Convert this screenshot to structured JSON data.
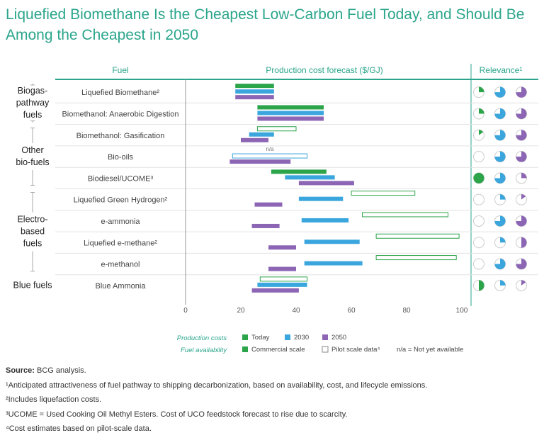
{
  "title": "Liquefied Biomethane Is the Cheapest Low-Carbon Fuel Today, and Should Be Among the Cheapest in 2050",
  "colors": {
    "accent": "#2aa58b",
    "today": "#2ca44a",
    "y2030": "#3aa6dd",
    "y2050": "#8c66b5",
    "rule": "#2aa58b",
    "pie_outline": "#cccccc",
    "axis": "#999999",
    "group_text": "#222222"
  },
  "headers": {
    "fuel": "Fuel",
    "cost": "Production cost forecast ($/GJ)",
    "relevance": "Relevance¹"
  },
  "chart_data": {
    "type": "bar",
    "orientation": "horizontal",
    "subtype": "floating-range",
    "title": "Production cost forecast ($/GJ)",
    "xlim": [
      0,
      100
    ],
    "xticks": [
      "0",
      "20",
      "40",
      "60",
      "80",
      "100"
    ],
    "series": [
      {
        "name": "Today",
        "key": "today"
      },
      {
        "name": "2030",
        "key": "y2030"
      },
      {
        "name": "2050",
        "key": "y2050"
      }
    ],
    "groups": [
      {
        "label": "Biogas-pathway fuels",
        "lines": [
          "Biogas-",
          "pathway",
          "fuels"
        ]
      },
      {
        "label": "Other bio-fuels",
        "lines": [
          "Other",
          "bio-fuels"
        ]
      },
      {
        "label": "Electro-based fuels",
        "lines": [
          "Electro-",
          "based",
          "fuels"
        ]
      },
      {
        "label": "Blue fuels",
        "lines": [
          "Blue fuels"
        ]
      }
    ],
    "rows": [
      {
        "name": "Liquefied Biomethane²",
        "group": 0,
        "today": {
          "low": 18,
          "high": 32,
          "scale": "commercial"
        },
        "y2030": {
          "low": 18,
          "high": 32
        },
        "y2050": {
          "low": 18,
          "high": 32
        },
        "relevance": [
          0.25,
          0.75,
          0.75
        ]
      },
      {
        "name": "Biomethanol: Anaerobic Digestion",
        "group": 0,
        "today": {
          "low": 26,
          "high": 50,
          "scale": "commercial"
        },
        "y2030": {
          "low": 26,
          "high": 50
        },
        "y2050": {
          "low": 26,
          "high": 50
        },
        "relevance": [
          0.25,
          0.75,
          0.75
        ]
      },
      {
        "name": "Biomethanol: Gasification",
        "group": 1,
        "today": {
          "low": 26,
          "high": 40,
          "scale": "pilot"
        },
        "y2030": {
          "low": 23,
          "high": 32
        },
        "y2050": {
          "low": 20,
          "high": 30
        },
        "relevance": [
          0.15,
          0.75,
          0.75
        ]
      },
      {
        "name": "Bio-oils",
        "group": 1,
        "today": null,
        "today_note": "n/a",
        "y2030": {
          "low": 17,
          "high": 44,
          "scale": "pilot"
        },
        "y2050": {
          "low": 16,
          "high": 38
        },
        "relevance": [
          0,
          0.75,
          0.75
        ]
      },
      {
        "name": "Biodiesel/UCOME³",
        "group": 1,
        "today": {
          "low": 31,
          "high": 51,
          "scale": "commercial"
        },
        "y2030": {
          "low": 36,
          "high": 54
        },
        "y2050": {
          "low": 41,
          "high": 61
        },
        "relevance": [
          1.0,
          0.75,
          0.25
        ]
      },
      {
        "name": "Liquefied Green Hydrogen²",
        "group": 2,
        "today": {
          "low": 60,
          "high": 83,
          "scale": "pilot"
        },
        "y2030": {
          "low": 41,
          "high": 57
        },
        "y2050": {
          "low": 25,
          "high": 35
        },
        "relevance": [
          0,
          0.25,
          0.15
        ]
      },
      {
        "name": "e-ammonia",
        "group": 2,
        "today": {
          "low": 64,
          "high": 95,
          "scale": "pilot"
        },
        "y2030": {
          "low": 42,
          "high": 59
        },
        "y2050": {
          "low": 24,
          "high": 34
        },
        "relevance": [
          0,
          0.75,
          0.75
        ]
      },
      {
        "name": "Liquefied e-methane²",
        "group": 2,
        "today": {
          "low": 69,
          "high": 99,
          "scale": "pilot"
        },
        "y2030": {
          "low": 43,
          "high": 63
        },
        "y2050": {
          "low": 30,
          "high": 40
        },
        "relevance": [
          0,
          0.25,
          0.5
        ]
      },
      {
        "name": "e-methanol",
        "group": 2,
        "today": {
          "low": 69,
          "high": 98,
          "scale": "pilot"
        },
        "y2030": {
          "low": 43,
          "high": 64
        },
        "y2050": {
          "low": 30,
          "high": 40
        },
        "relevance": [
          0,
          0.75,
          0.75
        ]
      },
      {
        "name": "Blue Ammonia",
        "group": 3,
        "today": {
          "low": 27,
          "high": 44,
          "scale": "pilot"
        },
        "y2030": {
          "low": 26,
          "high": 44
        },
        "y2050": {
          "low": 24,
          "high": 41
        },
        "relevance": [
          0.5,
          0.25,
          0.15
        ]
      }
    ],
    "legend": {
      "production_costs_label": "Production costs",
      "fuel_availability_label": "Fuel availability",
      "today": "Today",
      "y2030": "2030",
      "y2050": "2050",
      "commercial": "Commercial scale",
      "pilot": "Pilot scale data⁴",
      "na": "n/a = Not yet available"
    }
  },
  "notes": {
    "source_label": "Source:",
    "source_text": " BCG analysis.",
    "fn1": "¹Anticipated attractiveness of fuel pathway to shipping decarbonization, based on availability, cost, and lifecycle emissions.",
    "fn2": "²Includes liquefaction costs.",
    "fn3": "³UCOME = Used Cooking Oil Methyl Esters. Cost of UCO feedstock forecast to rise due to scarcity.",
    "fn4": "⁴Cost estimates based on pilot-scale data."
  }
}
